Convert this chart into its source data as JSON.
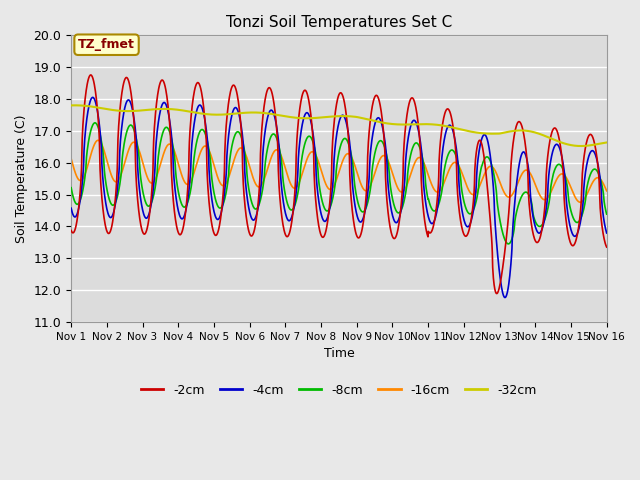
{
  "title": "Tonzi Soil Temperatures Set C",
  "xlabel": "Time",
  "ylabel": "Soil Temperature (C)",
  "ylim": [
    11.0,
    20.0
  ],
  "yticks": [
    11.0,
    12.0,
    13.0,
    14.0,
    15.0,
    16.0,
    17.0,
    18.0,
    19.0,
    20.0
  ],
  "xtick_labels": [
    "Nov 1",
    "Nov 2",
    "Nov 3",
    "Nov 4",
    "Nov 5",
    "Nov 6",
    "Nov 7",
    "Nov 8",
    "Nov 9",
    "Nov 10",
    "Nov 11",
    "Nov 12",
    "Nov 13",
    "Nov 14",
    "Nov 15",
    "Nov 16"
  ],
  "series": {
    "-2cm": {
      "color": "#cc0000",
      "linewidth": 1.2
    },
    "-4cm": {
      "color": "#0000cc",
      "linewidth": 1.2
    },
    "-8cm": {
      "color": "#00bb00",
      "linewidth": 1.2
    },
    "-16cm": {
      "color": "#ff8800",
      "linewidth": 1.2
    },
    "-32cm": {
      "color": "#cccc00",
      "linewidth": 1.5
    }
  },
  "annotation_label": "TZ_fmet",
  "annotation_color": "#880000",
  "annotation_bg": "#ffffcc",
  "annotation_border": "#aa8800",
  "fig_bg": "#e8e8e8",
  "plot_bg": "#dcdcdc",
  "grid_color": "#ffffff",
  "n_points": 1500
}
